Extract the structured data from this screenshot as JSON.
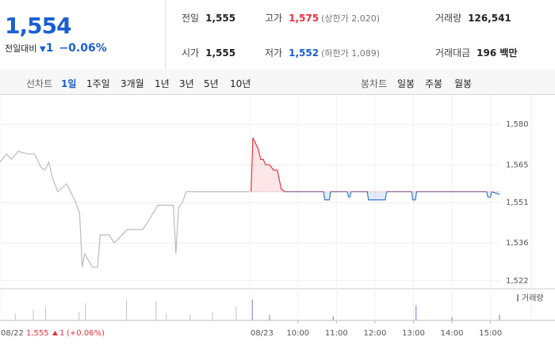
{
  "header": {
    "price": "1,554",
    "change_label": "전일대비",
    "change": "1",
    "rate": "−0.06%",
    "stats": [
      [
        {
          "label": "전일",
          "value": "1,555"
        },
        {
          "label": "고가",
          "value": "1,575",
          "note": "(상한가 2,020)"
        },
        {
          "label": "거래량",
          "value": "126,541"
        }
      ],
      [
        {
          "label": "시가",
          "value": "1,555"
        },
        {
          "label": "저가",
          "value": "1,552",
          "note": "(하한가 1,089)"
        },
        {
          "label": "거래대금",
          "value": "196 백만"
        }
      ]
    ]
  },
  "tabs": {
    "line_label": "선차트",
    "line_periods": [
      "1일",
      "1주일",
      "3개월",
      "1년",
      "3년",
      "5년",
      "10년"
    ],
    "candle_label": "봉차트",
    "candle_periods": [
      "일봉",
      "주봉",
      "월봉"
    ]
  },
  "footer": {
    "date": "08/22",
    "price": "1,555",
    "change": "1",
    "rate": "(+0.06%)"
  },
  "chart_data": {
    "type": "line",
    "baseline": 1555,
    "series": [
      {
        "name": "08/22",
        "color": "#bbbbbb",
        "x": [
          -14,
          -4,
          4,
          14,
          30,
          40,
          50,
          56,
          62,
          68,
          76,
          90,
          104,
          110,
          114,
          118,
          130,
          138,
          142,
          156,
          164,
          176,
          184,
          208,
          214,
          232,
          256,
          260,
          264,
          270,
          276,
          300,
          350,
          375
        ],
        "values": [
          1566,
          1569,
          1567,
          1570,
          1569,
          1569,
          1564,
          1563,
          1566,
          1560,
          1555,
          1558,
          1551,
          1547,
          1527,
          1532,
          1527,
          1527,
          1539,
          1539,
          1536,
          1539,
          1541,
          1541,
          1543,
          1550,
          1550,
          1532,
          1549,
          1551,
          1555,
          1555,
          1555,
          1555
        ]
      },
      {
        "name": "08/23",
        "up_color": "#e8313f",
        "down_color": "#3a78c9",
        "x": [
          377,
          380,
          384,
          388,
          392,
          396,
          400,
          406,
          412,
          418,
          424,
          430,
          490,
          492,
          499,
          501,
          527,
          529,
          531,
          533,
          558,
          560,
          586,
          588,
          627,
          629,
          633,
          635,
          744,
          746,
          750,
          752,
          764
        ],
        "values": [
          1555,
          1575,
          1573,
          1571,
          1567,
          1567,
          1565,
          1565,
          1563,
          1563,
          1556,
          1555,
          1555,
          1552,
          1552,
          1555,
          1555,
          1553,
          1553,
          1555,
          1555,
          1552,
          1552,
          1555,
          1555,
          1552,
          1552,
          1555,
          1555,
          1553,
          1553,
          1555,
          1554
        ]
      }
    ],
    "volume": {
      "name": "거래량",
      "color": "#9a86d6",
      "prev_color": "#cccccc",
      "ylim": [
        0,
        40000
      ],
      "x": [
        10,
        38,
        57,
        109,
        119,
        183,
        229,
        245,
        282,
        317,
        354,
        379,
        406,
        505,
        634,
        690,
        764
      ],
      "values": [
        10000,
        15000,
        20000,
        12000,
        25000,
        30000,
        28000,
        10000,
        8000,
        12000,
        20000,
        30000,
        8000,
        6000,
        22000,
        5000,
        8000
      ]
    },
    "xlim": [
      -14,
      764
    ],
    "ylim": [
      1519,
      1588
    ],
    "yticks": [
      {
        "value": 1522,
        "label": "1,522"
      },
      {
        "value": 1536,
        "label": "1,536"
      },
      {
        "value": 1551,
        "label": "1,551"
      },
      {
        "value": 1565,
        "label": "1,565"
      },
      {
        "value": 1580,
        "label": "1,580"
      }
    ],
    "xticks": [
      {
        "value": 450,
        "label": "10:00"
      },
      {
        "value": 510,
        "label": "11:00"
      },
      {
        "value": 570,
        "label": "12:00"
      },
      {
        "value": 630,
        "label": "13:00"
      },
      {
        "value": 690,
        "label": "14:00"
      },
      {
        "value": 750,
        "label": "15:00"
      }
    ],
    "day_ticks": [
      {
        "value": -14,
        "label": "08/22"
      },
      {
        "value": 375,
        "label": "08/23"
      }
    ],
    "grid": true
  }
}
